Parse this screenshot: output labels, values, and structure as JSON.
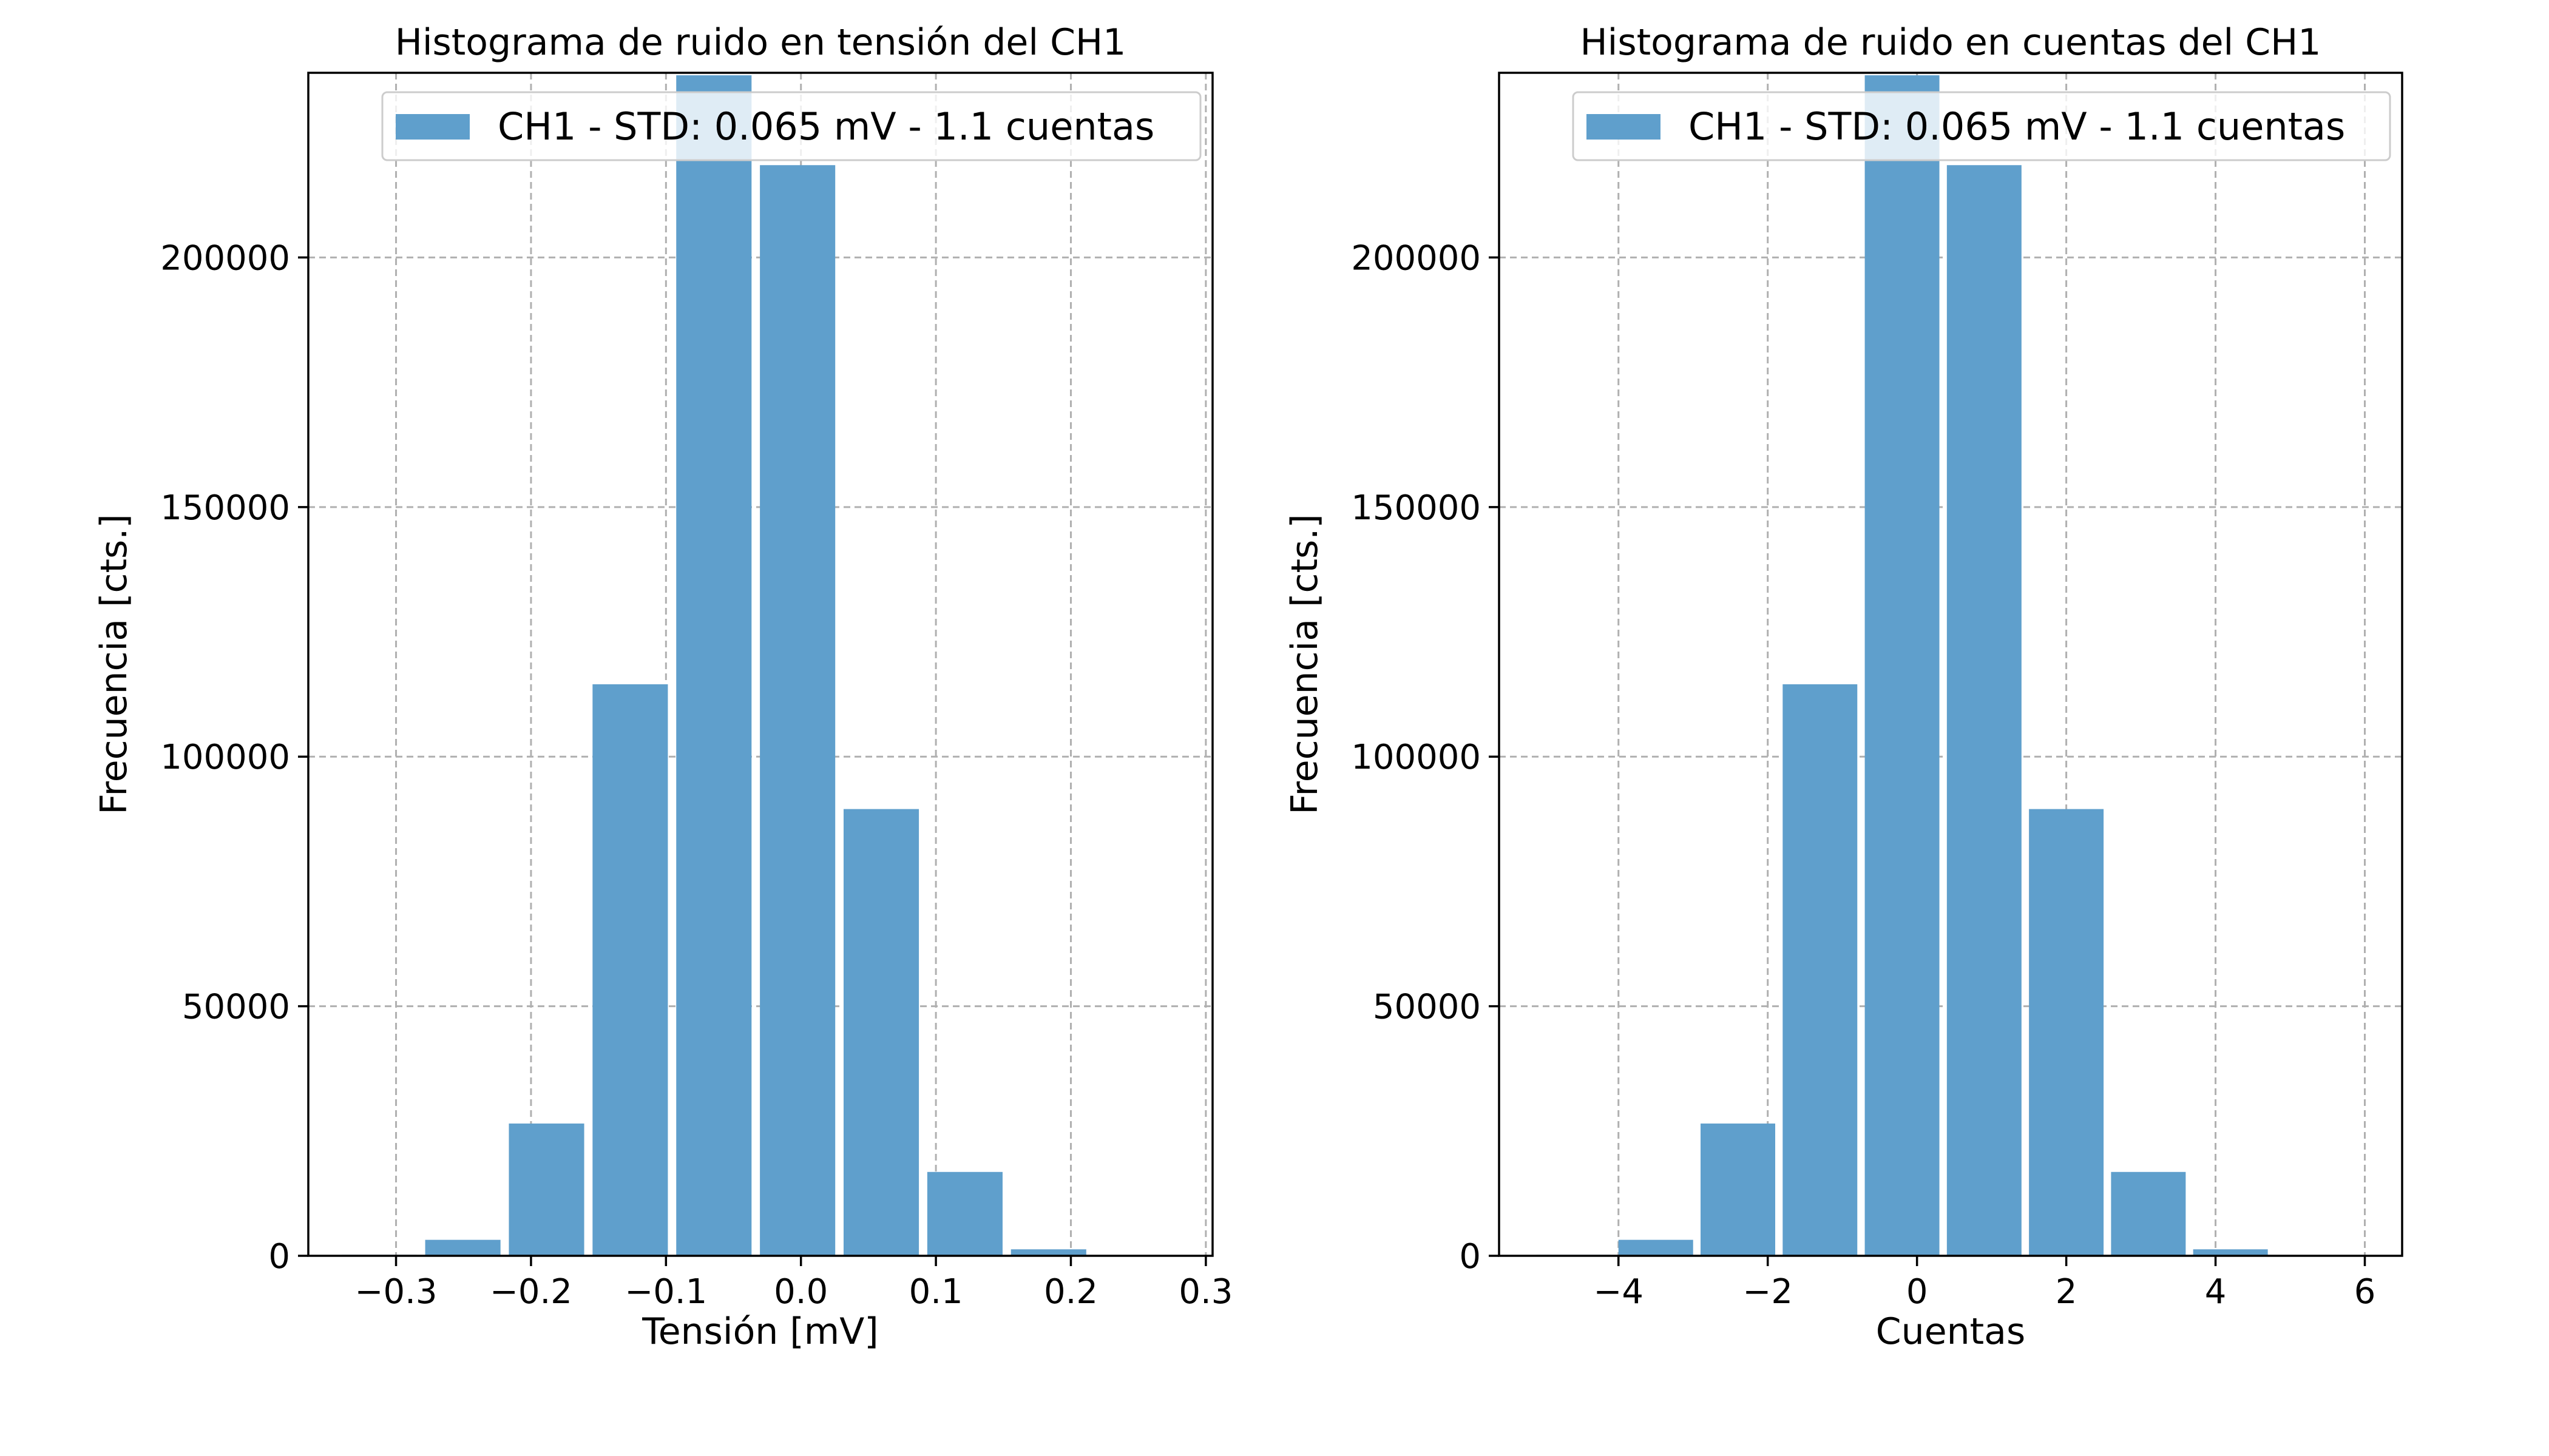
{
  "colors": {
    "bar": "#5f9fcc",
    "grid": "#b0b0b0",
    "axis": "#000000",
    "legend_border": "#cccccc"
  },
  "chart_data": [
    {
      "type": "bar",
      "title": "Histograma de ruido en tensión del CH1",
      "xlabel": "Tensión [mV]",
      "ylabel": "Frecuencia [cts.]",
      "xlim": [
        -0.365,
        0.305
      ],
      "ylim": [
        0,
        237000
      ],
      "grid": true,
      "legend_position": "top-right",
      "legend_label": "CH1 - STD:  0.065 mV -   1.1 cuentas",
      "xticks": [
        -0.3,
        -0.2,
        -0.1,
        0.0,
        0.1,
        0.2,
        0.3
      ],
      "xtick_labels": [
        "−0.3",
        "−0.2",
        "−0.1",
        "0.0",
        "0.1",
        "0.2",
        "0.3"
      ],
      "yticks": [
        0,
        50000,
        100000,
        150000,
        200000
      ],
      "ytick_labels": [
        "0",
        "50000",
        "100000",
        "150000",
        "200000"
      ],
      "bar_width": 0.0558,
      "bars": [
        {
          "x": -0.3125,
          "y": 200
        },
        {
          "x": -0.2505,
          "y": 3200
        },
        {
          "x": -0.1885,
          "y": 26500
        },
        {
          "x": -0.1265,
          "y": 114500
        },
        {
          "x": -0.0645,
          "y": 236500
        },
        {
          "x": -0.0025,
          "y": 218500
        },
        {
          "x": 0.0595,
          "y": 89500
        },
        {
          "x": 0.1215,
          "y": 16800
        },
        {
          "x": 0.1835,
          "y": 1300
        },
        {
          "x": 0.2455,
          "y": 100
        }
      ]
    },
    {
      "type": "bar",
      "title": "Histograma de ruido en cuentas del CH1",
      "xlabel": "Cuentas",
      "ylabel": "Frecuencia [cts.]",
      "xlim": [
        -5.6,
        6.5
      ],
      "ylim": [
        0,
        237000
      ],
      "grid": true,
      "legend_position": "top-right",
      "legend_label": "CH1 - STD:  0.065 mV -   1.1 cuentas",
      "xticks": [
        -4,
        -2,
        0,
        2,
        4,
        6
      ],
      "xtick_labels": [
        "−4",
        "−2",
        "0",
        "2",
        "4",
        "6"
      ],
      "yticks": [
        0,
        50000,
        100000,
        150000,
        200000
      ],
      "ytick_labels": [
        "0",
        "50000",
        "100000",
        "150000",
        "200000"
      ],
      "bar_width": 1.0,
      "bars": [
        {
          "x": -4.6,
          "y": 200
        },
        {
          "x": -3.5,
          "y": 3200
        },
        {
          "x": -2.4,
          "y": 26500
        },
        {
          "x": -1.3,
          "y": 114500
        },
        {
          "x": -0.2,
          "y": 236500
        },
        {
          "x": 0.9,
          "y": 218500
        },
        {
          "x": 2.0,
          "y": 89500
        },
        {
          "x": 3.1,
          "y": 16800
        },
        {
          "x": 4.2,
          "y": 1300
        },
        {
          "x": 5.3,
          "y": 100
        }
      ]
    }
  ]
}
